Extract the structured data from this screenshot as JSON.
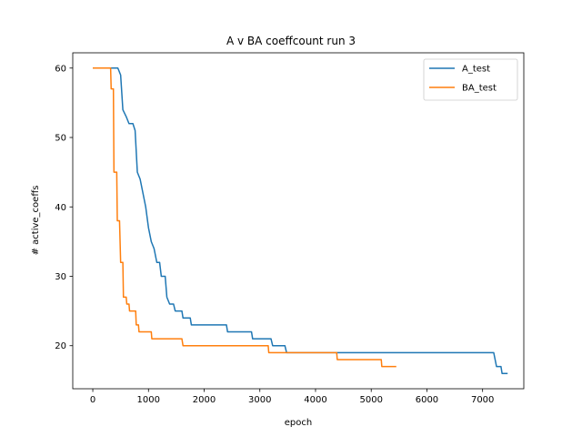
{
  "chart_data": {
    "type": "line",
    "title": "A v BA coeffcount run 3",
    "xlabel": "epoch",
    "ylabel": "# active_coeffs",
    "xlim": [
      -360,
      7740
    ],
    "ylim": [
      13.8,
      62.2
    ],
    "xticks": [
      0,
      1000,
      2000,
      3000,
      4000,
      5000,
      6000,
      7000
    ],
    "yticks": [
      20,
      30,
      40,
      50,
      60
    ],
    "grid": false,
    "legend_position": "top-right",
    "series": [
      {
        "name": "A_test",
        "color": "#1f77b4",
        "points": [
          [
            0,
            60
          ],
          [
            450,
            60
          ],
          [
            500,
            59
          ],
          [
            540,
            54
          ],
          [
            600,
            53
          ],
          [
            650,
            52
          ],
          [
            720,
            52
          ],
          [
            760,
            51
          ],
          [
            800,
            45
          ],
          [
            850,
            44
          ],
          [
            900,
            42
          ],
          [
            950,
            40
          ],
          [
            1000,
            37
          ],
          [
            1050,
            35
          ],
          [
            1100,
            34
          ],
          [
            1150,
            32
          ],
          [
            1200,
            32
          ],
          [
            1230,
            30
          ],
          [
            1300,
            30
          ],
          [
            1330,
            27
          ],
          [
            1380,
            26
          ],
          [
            1450,
            26
          ],
          [
            1480,
            25
          ],
          [
            1600,
            25
          ],
          [
            1620,
            24
          ],
          [
            1750,
            24
          ],
          [
            1770,
            23
          ],
          [
            2400,
            23
          ],
          [
            2420,
            22
          ],
          [
            2850,
            22
          ],
          [
            2870,
            21
          ],
          [
            3200,
            21
          ],
          [
            3230,
            20
          ],
          [
            3450,
            20
          ],
          [
            3480,
            19
          ],
          [
            7200,
            19
          ],
          [
            7250,
            17
          ],
          [
            7330,
            17
          ],
          [
            7350,
            16
          ],
          [
            7450,
            16
          ]
        ]
      },
      {
        "name": "BA_test",
        "color": "#ff7f0e",
        "points": [
          [
            0,
            60
          ],
          [
            320,
            60
          ],
          [
            330,
            57
          ],
          [
            370,
            57
          ],
          [
            380,
            45
          ],
          [
            430,
            45
          ],
          [
            440,
            38
          ],
          [
            480,
            38
          ],
          [
            500,
            32
          ],
          [
            540,
            32
          ],
          [
            550,
            27
          ],
          [
            600,
            27
          ],
          [
            610,
            26
          ],
          [
            650,
            26
          ],
          [
            660,
            25
          ],
          [
            770,
            25
          ],
          [
            780,
            23
          ],
          [
            820,
            23
          ],
          [
            830,
            22
          ],
          [
            1050,
            22
          ],
          [
            1060,
            21
          ],
          [
            1600,
            21
          ],
          [
            1620,
            20
          ],
          [
            3150,
            20
          ],
          [
            3160,
            19
          ],
          [
            4380,
            19
          ],
          [
            4390,
            18
          ],
          [
            5180,
            18
          ],
          [
            5190,
            17
          ],
          [
            5450,
            17
          ]
        ]
      }
    ]
  }
}
